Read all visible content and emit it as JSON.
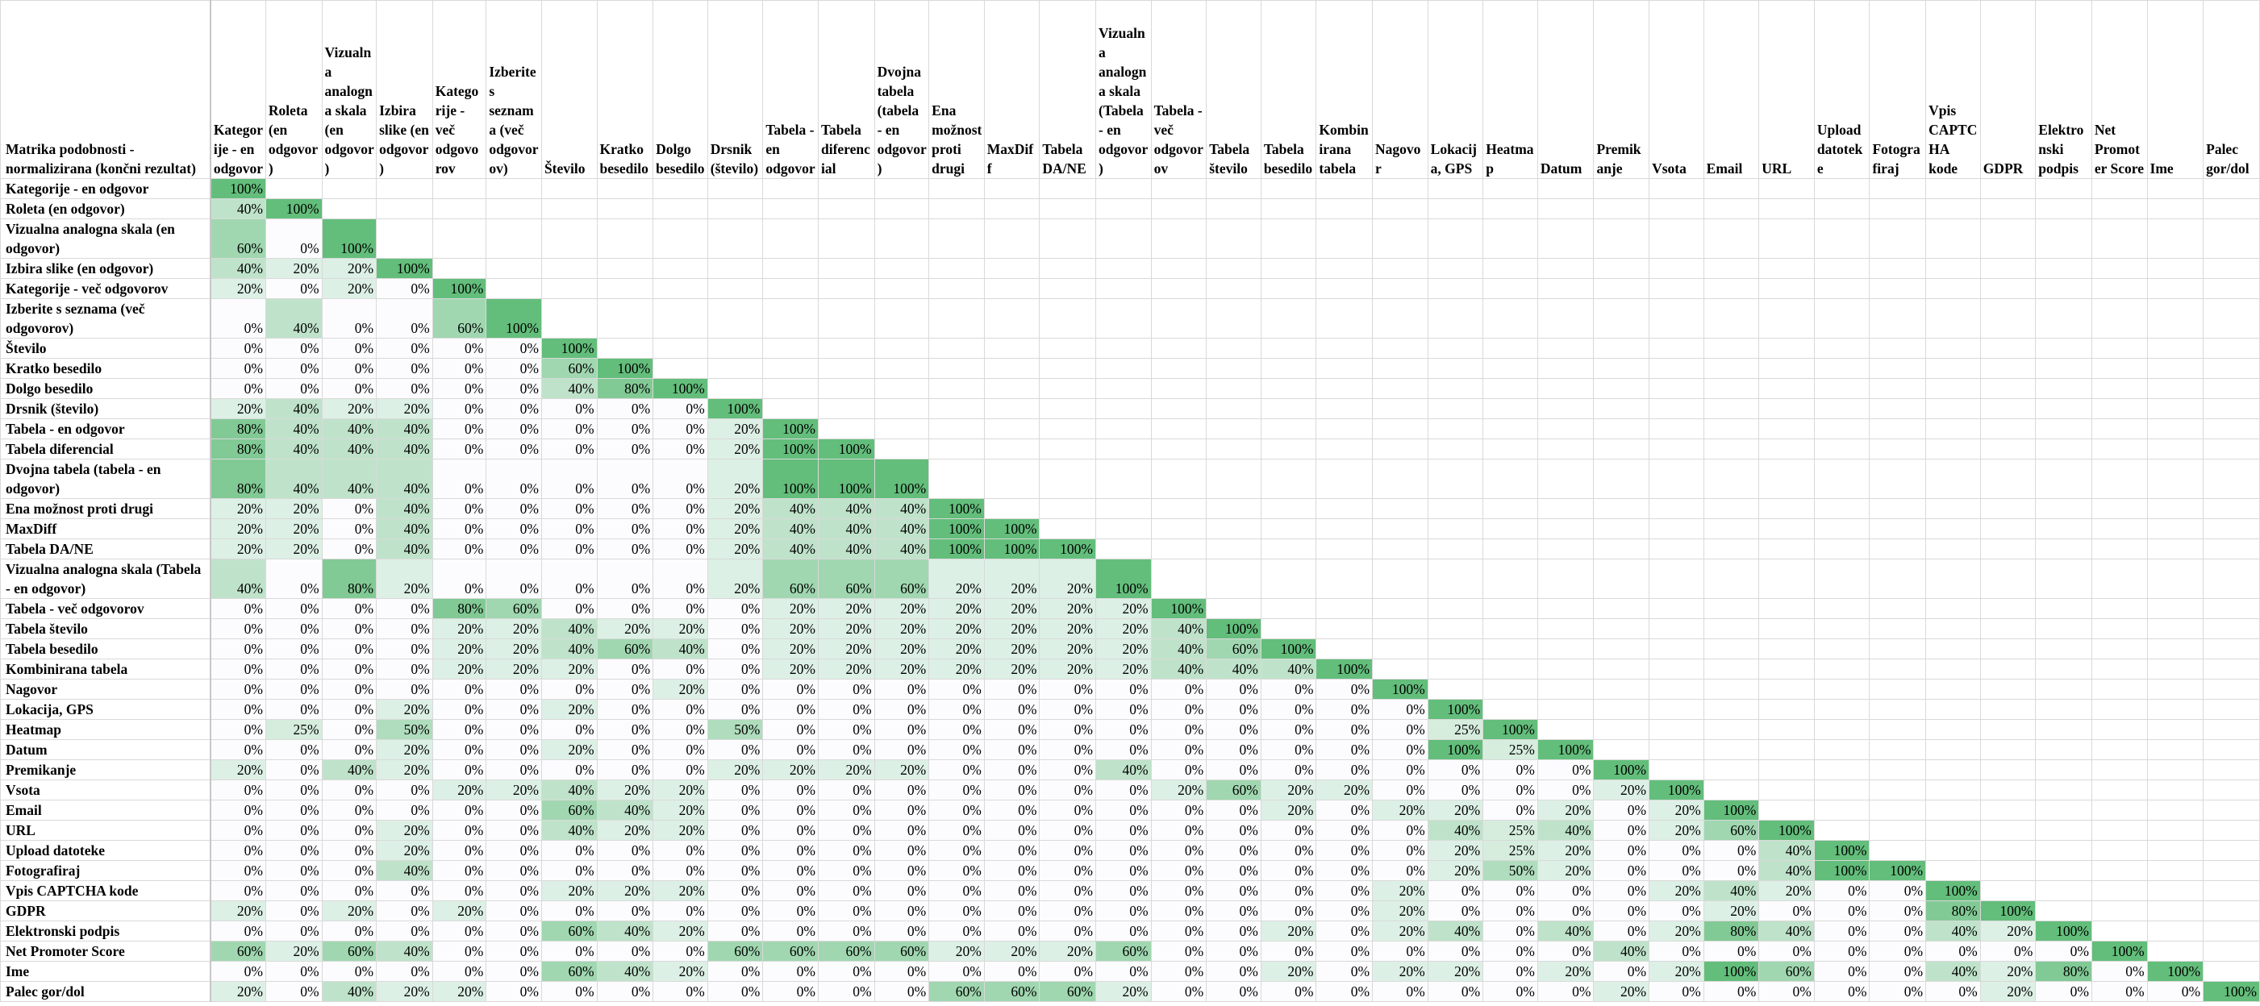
{
  "corner_label": "Matrika podobnosti - normalizirana (končni rezultat)",
  "columns": [
    "Kategorije - en odgovor",
    "Roleta (en odgovor)",
    "Vizualna analogna skala (en odgovor)",
    "Izbira slike (en odgovor)",
    "Kategorije - več odgovorov",
    "Izberite s seznama (več odgovorov)",
    "Število",
    "Kratko besedilo",
    "Dolgo besedilo",
    "Drsnik (število)",
    "Tabela - en odgovor",
    "Tabela diferencial",
    "Dvojna tabela (tabela - en odgovor)",
    "Ena možnost proti drugi",
    "MaxDiff",
    "Tabela DA/NE",
    "Vizualna analogna skala (Tabela - en odgovor)",
    "Tabela - več odgovorov",
    "Tabela število",
    "Tabela besedilo",
    "Kombinirana tabela",
    "Nagovor",
    "Lokacija, GPS",
    "Heatmap",
    "Datum",
    "Premikanje",
    "Vsota",
    "Email",
    "URL",
    "Upload datoteke",
    "Fotografiraj",
    "Vpis CAPTCHA kode",
    "GDPR",
    "Elektronski podpis",
    "Net Promoter Score",
    "Ime",
    "Palec gor/dol"
  ],
  "rows": [
    {
      "label": "Kategorije - en odgovor",
      "values": [
        100
      ]
    },
    {
      "label": "Roleta (en odgovor)",
      "values": [
        40,
        100
      ]
    },
    {
      "label": "Vizualna analogna skala (en odgovor)",
      "values": [
        60,
        0,
        100
      ]
    },
    {
      "label": "Izbira slike (en odgovor)",
      "values": [
        40,
        20,
        20,
        100
      ]
    },
    {
      "label": "Kategorije - več odgovorov",
      "values": [
        20,
        0,
        20,
        0,
        100
      ]
    },
    {
      "label": "Izberite s seznama (več odgovorov)",
      "values": [
        0,
        40,
        0,
        0,
        60,
        100
      ]
    },
    {
      "label": "Število",
      "values": [
        0,
        0,
        0,
        0,
        0,
        0,
        100
      ]
    },
    {
      "label": "Kratko besedilo",
      "values": [
        0,
        0,
        0,
        0,
        0,
        0,
        60,
        100
      ]
    },
    {
      "label": "Dolgo besedilo",
      "values": [
        0,
        0,
        0,
        0,
        0,
        0,
        40,
        80,
        100
      ]
    },
    {
      "label": "Drsnik (število)",
      "values": [
        20,
        40,
        20,
        20,
        0,
        0,
        0,
        0,
        0,
        100
      ]
    },
    {
      "label": "Tabela - en odgovor",
      "values": [
        80,
        40,
        40,
        40,
        0,
        0,
        0,
        0,
        0,
        20,
        100
      ]
    },
    {
      "label": "Tabela diferencial",
      "values": [
        80,
        40,
        40,
        40,
        0,
        0,
        0,
        0,
        0,
        20,
        100,
        100
      ]
    },
    {
      "label": "Dvojna tabela (tabela - en odgovor)",
      "values": [
        80,
        40,
        40,
        40,
        0,
        0,
        0,
        0,
        0,
        20,
        100,
        100,
        100
      ]
    },
    {
      "label": "Ena možnost proti drugi",
      "values": [
        20,
        20,
        0,
        40,
        0,
        0,
        0,
        0,
        0,
        20,
        40,
        40,
        40,
        100
      ]
    },
    {
      "label": "MaxDiff",
      "values": [
        20,
        20,
        0,
        40,
        0,
        0,
        0,
        0,
        0,
        20,
        40,
        40,
        40,
        100,
        100
      ]
    },
    {
      "label": "Tabela DA/NE",
      "values": [
        20,
        20,
        0,
        40,
        0,
        0,
        0,
        0,
        0,
        20,
        40,
        40,
        40,
        100,
        100,
        100
      ]
    },
    {
      "label": "Vizualna analogna skala (Tabela - en odgovor)",
      "values": [
        40,
        0,
        80,
        20,
        0,
        0,
        0,
        0,
        0,
        20,
        60,
        60,
        60,
        20,
        20,
        20,
        100
      ]
    },
    {
      "label": "Tabela - več odgovorov",
      "values": [
        0,
        0,
        0,
        0,
        80,
        60,
        0,
        0,
        0,
        0,
        20,
        20,
        20,
        20,
        20,
        20,
        20,
        100
      ]
    },
    {
      "label": "Tabela število",
      "values": [
        0,
        0,
        0,
        0,
        20,
        20,
        40,
        20,
        20,
        0,
        20,
        20,
        20,
        20,
        20,
        20,
        20,
        40,
        100
      ]
    },
    {
      "label": "Tabela besedilo",
      "values": [
        0,
        0,
        0,
        0,
        20,
        20,
        40,
        60,
        40,
        0,
        20,
        20,
        20,
        20,
        20,
        20,
        20,
        40,
        60,
        100
      ]
    },
    {
      "label": "Kombinirana tabela",
      "values": [
        0,
        0,
        0,
        0,
        20,
        20,
        20,
        0,
        0,
        0,
        20,
        20,
        20,
        20,
        20,
        20,
        20,
        40,
        40,
        40,
        100
      ]
    },
    {
      "label": "Nagovor",
      "values": [
        0,
        0,
        0,
        0,
        0,
        0,
        0,
        0,
        20,
        0,
        0,
        0,
        0,
        0,
        0,
        0,
        0,
        0,
        0,
        0,
        0,
        100
      ]
    },
    {
      "label": "Lokacija, GPS",
      "values": [
        0,
        0,
        0,
        20,
        0,
        0,
        20,
        0,
        0,
        0,
        0,
        0,
        0,
        0,
        0,
        0,
        0,
        0,
        0,
        0,
        0,
        0,
        100
      ]
    },
    {
      "label": "Heatmap",
      "values": [
        0,
        25,
        0,
        50,
        0,
        0,
        0,
        0,
        0,
        50,
        0,
        0,
        0,
        0,
        0,
        0,
        0,
        0,
        0,
        0,
        0,
        0,
        25,
        100
      ]
    },
    {
      "label": "Datum",
      "values": [
        0,
        0,
        0,
        20,
        0,
        0,
        20,
        0,
        0,
        0,
        0,
        0,
        0,
        0,
        0,
        0,
        0,
        0,
        0,
        0,
        0,
        0,
        100,
        25,
        100
      ]
    },
    {
      "label": "Premikanje",
      "values": [
        20,
        0,
        40,
        20,
        0,
        0,
        0,
        0,
        0,
        20,
        20,
        20,
        20,
        0,
        0,
        0,
        40,
        0,
        0,
        0,
        0,
        0,
        0,
        0,
        0,
        100
      ]
    },
    {
      "label": "Vsota",
      "values": [
        0,
        0,
        0,
        0,
        20,
        20,
        40,
        20,
        20,
        0,
        0,
        0,
        0,
        0,
        0,
        0,
        0,
        20,
        60,
        20,
        20,
        0,
        0,
        0,
        0,
        20,
        100
      ]
    },
    {
      "label": "Email",
      "values": [
        0,
        0,
        0,
        0,
        0,
        0,
        60,
        40,
        20,
        0,
        0,
        0,
        0,
        0,
        0,
        0,
        0,
        0,
        0,
        20,
        0,
        20,
        20,
        0,
        20,
        0,
        20,
        100
      ]
    },
    {
      "label": "URL",
      "values": [
        0,
        0,
        0,
        20,
        0,
        0,
        40,
        20,
        20,
        0,
        0,
        0,
        0,
        0,
        0,
        0,
        0,
        0,
        0,
        0,
        0,
        0,
        40,
        25,
        40,
        0,
        20,
        60,
        100
      ]
    },
    {
      "label": "Upload datoteke",
      "values": [
        0,
        0,
        0,
        20,
        0,
        0,
        0,
        0,
        0,
        0,
        0,
        0,
        0,
        0,
        0,
        0,
        0,
        0,
        0,
        0,
        0,
        0,
        20,
        25,
        20,
        0,
        0,
        0,
        40,
        100
      ]
    },
    {
      "label": "Fotografiraj",
      "values": [
        0,
        0,
        0,
        40,
        0,
        0,
        0,
        0,
        0,
        0,
        0,
        0,
        0,
        0,
        0,
        0,
        0,
        0,
        0,
        0,
        0,
        0,
        20,
        50,
        20,
        0,
        0,
        0,
        40,
        100,
        100
      ]
    },
    {
      "label": "Vpis CAPTCHA kode",
      "values": [
        0,
        0,
        0,
        0,
        0,
        0,
        20,
        20,
        20,
        0,
        0,
        0,
        0,
        0,
        0,
        0,
        0,
        0,
        0,
        0,
        0,
        20,
        0,
        0,
        0,
        0,
        20,
        40,
        20,
        0,
        0,
        100
      ]
    },
    {
      "label": "GDPR",
      "values": [
        20,
        0,
        20,
        0,
        20,
        0,
        0,
        0,
        0,
        0,
        0,
        0,
        0,
        0,
        0,
        0,
        0,
        0,
        0,
        0,
        0,
        20,
        0,
        0,
        0,
        0,
        0,
        20,
        0,
        0,
        0,
        80,
        100
      ]
    },
    {
      "label": "Elektronski podpis",
      "values": [
        0,
        0,
        0,
        0,
        0,
        0,
        60,
        40,
        20,
        0,
        0,
        0,
        0,
        0,
        0,
        0,
        0,
        0,
        0,
        20,
        0,
        20,
        40,
        0,
        40,
        0,
        20,
        80,
        40,
        0,
        0,
        40,
        20,
        100
      ]
    },
    {
      "label": "Net Promoter Score",
      "values": [
        60,
        20,
        60,
        40,
        0,
        0,
        0,
        0,
        0,
        60,
        60,
        60,
        60,
        20,
        20,
        20,
        60,
        0,
        0,
        0,
        0,
        0,
        0,
        0,
        0,
        40,
        0,
        0,
        0,
        0,
        0,
        0,
        0,
        0,
        100
      ]
    },
    {
      "label": "Ime",
      "values": [
        0,
        0,
        0,
        0,
        0,
        0,
        60,
        40,
        20,
        0,
        0,
        0,
        0,
        0,
        0,
        0,
        0,
        0,
        0,
        20,
        0,
        20,
        20,
        0,
        20,
        0,
        20,
        100,
        60,
        0,
        0,
        40,
        20,
        80,
        0,
        100
      ]
    },
    {
      "label": "Palec gor/dol",
      "values": [
        20,
        0,
        40,
        20,
        20,
        0,
        0,
        0,
        0,
        0,
        0,
        0,
        0,
        60,
        60,
        60,
        20,
        0,
        0,
        0,
        0,
        0,
        0,
        0,
        0,
        20,
        0,
        0,
        0,
        0,
        0,
        0,
        20,
        0,
        0,
        0,
        100
      ]
    }
  ],
  "two_line_rows": [
    2,
    5,
    12,
    16
  ],
  "colors": {
    "scale_low": "#fcfcff",
    "scale_high": "#63be7b",
    "grid": "#d9d9d9",
    "text": "#000000"
  }
}
